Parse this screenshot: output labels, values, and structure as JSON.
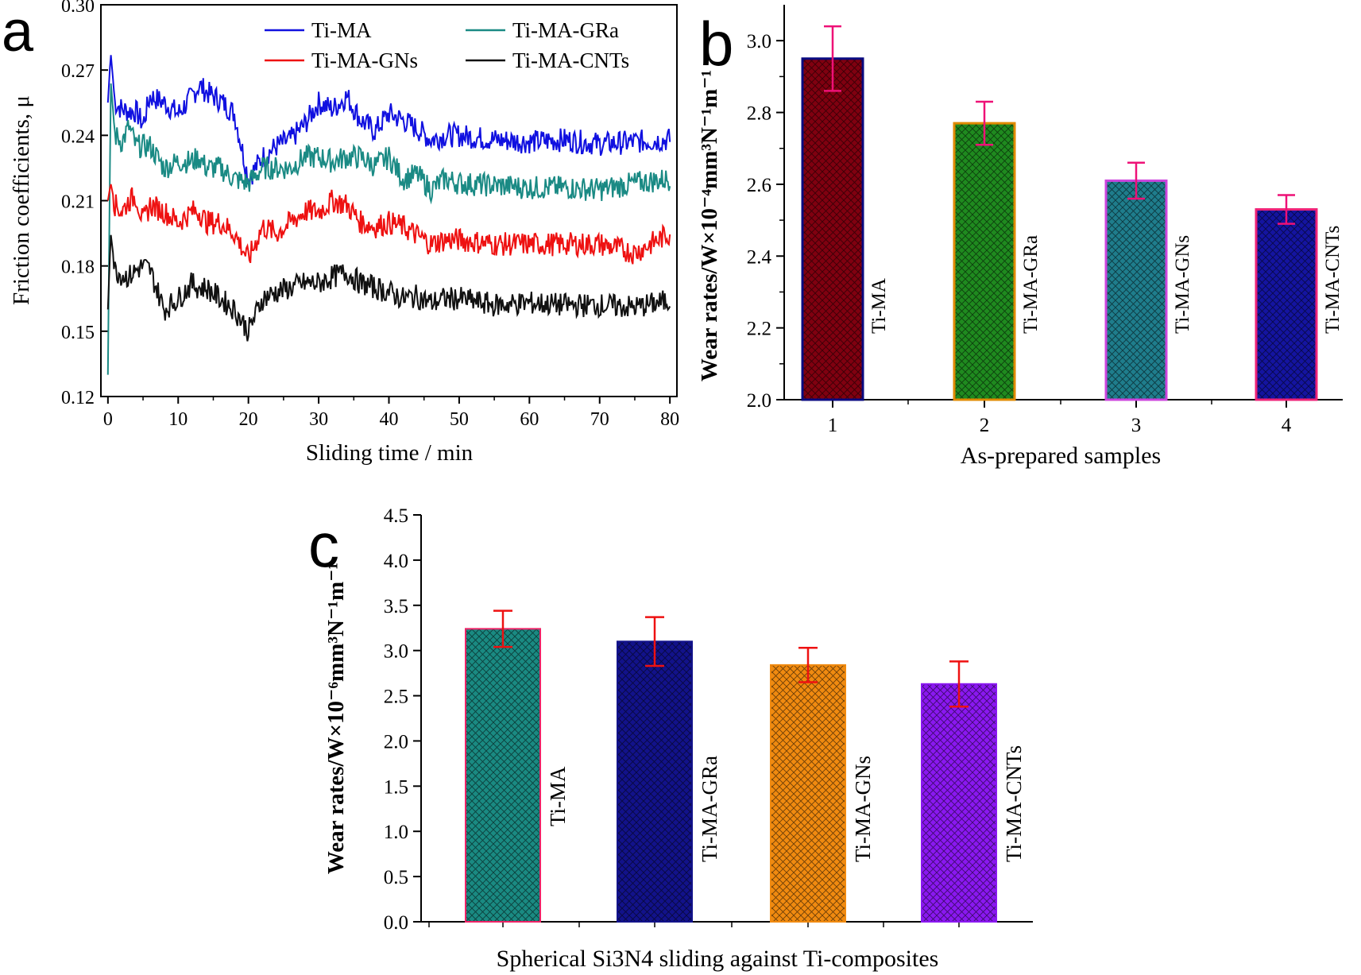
{
  "chart_data": [
    {
      "panel_label": "a",
      "type": "line",
      "xlabel": "Sliding time / min",
      "ylabel": "Friction coefficients, μ",
      "xlim": [
        -1,
        81
      ],
      "ylim": [
        0.12,
        0.3
      ],
      "xticks": [
        "0",
        "10",
        "20",
        "30",
        "40",
        "50",
        "60",
        "70",
        "80"
      ],
      "yticks": [
        "0.12",
        "0.15",
        "0.18",
        "0.21",
        "0.24",
        "0.27",
        "0.30"
      ],
      "legend": [
        "Ti-MA",
        "Ti-MA-GRa",
        "Ti-MA-GNs",
        "Ti-MA-CNTs"
      ],
      "legend_position": "top",
      "x": [
        0,
        0.4,
        1,
        2,
        3,
        4,
        5,
        6,
        8,
        10,
        12,
        13,
        14,
        16,
        18,
        20,
        22,
        24,
        26,
        28,
        30,
        32,
        34,
        36,
        38,
        40,
        42,
        44,
        46,
        48,
        50,
        55,
        60,
        65,
        70,
        75,
        80
      ],
      "series": [
        {
          "name": "Ti-MA",
          "color": "#1010e0",
          "values": [
            0.255,
            0.278,
            0.255,
            0.252,
            0.251,
            0.251,
            0.245,
            0.258,
            0.255,
            0.25,
            0.258,
            0.263,
            0.26,
            0.256,
            0.25,
            0.22,
            0.23,
            0.235,
            0.238,
            0.245,
            0.255,
            0.252,
            0.258,
            0.247,
            0.242,
            0.25,
            0.247,
            0.243,
            0.238,
            0.24,
            0.24,
            0.238,
            0.237,
            0.238,
            0.236,
            0.237,
            0.238
          ]
        },
        {
          "name": "Ti-MA-GRa",
          "color": "#1a8a84",
          "values": [
            0.13,
            0.265,
            0.24,
            0.237,
            0.244,
            0.235,
            0.235,
            0.235,
            0.225,
            0.228,
            0.228,
            0.23,
            0.225,
            0.225,
            0.22,
            0.218,
            0.225,
            0.225,
            0.225,
            0.23,
            0.23,
            0.228,
            0.23,
            0.23,
            0.226,
            0.23,
            0.22,
            0.222,
            0.215,
            0.22,
            0.218,
            0.217,
            0.216,
            0.216,
            0.215,
            0.218,
            0.22
          ]
        },
        {
          "name": "Ti-MA-GNs",
          "color": "#ee1111",
          "values": [
            0.21,
            0.218,
            0.208,
            0.205,
            0.21,
            0.212,
            0.2,
            0.208,
            0.205,
            0.2,
            0.205,
            0.205,
            0.2,
            0.2,
            0.195,
            0.183,
            0.198,
            0.195,
            0.2,
            0.205,
            0.205,
            0.21,
            0.208,
            0.2,
            0.198,
            0.2,
            0.198,
            0.194,
            0.19,
            0.192,
            0.192,
            0.19,
            0.19,
            0.19,
            0.19,
            0.186,
            0.195
          ]
        },
        {
          "name": "Ti-MA-CNTs",
          "color": "#111111",
          "values": [
            0.16,
            0.195,
            0.178,
            0.176,
            0.175,
            0.178,
            0.18,
            0.178,
            0.16,
            0.165,
            0.172,
            0.17,
            0.17,
            0.165,
            0.16,
            0.15,
            0.165,
            0.168,
            0.17,
            0.172,
            0.172,
            0.175,
            0.177,
            0.172,
            0.17,
            0.168,
            0.165,
            0.166,
            0.163,
            0.165,
            0.165,
            0.162,
            0.163,
            0.162,
            0.162,
            0.161,
            0.164
          ]
        }
      ]
    },
    {
      "panel_label": "b",
      "type": "bar",
      "xlabel": "As-prepared samples",
      "ylabel": "Wear rates/W×10⁻⁴mm³N⁻¹m⁻¹",
      "ylim": [
        2.0,
        3.1
      ],
      "yticks": [
        "2.0",
        "2.2",
        "2.4",
        "2.6",
        "2.8",
        "3.0"
      ],
      "categories": [
        "1",
        "2",
        "3",
        "4"
      ],
      "bar_labels": [
        "Ti-MA",
        "Ti-MA-GRa",
        "Ti-MA-GNs",
        "Ti-MA-CNTs"
      ],
      "values": [
        2.95,
        2.77,
        2.61,
        2.53
      ],
      "errors": [
        0.09,
        0.06,
        0.05,
        0.04
      ],
      "bar_colors": [
        "#800010",
        "#1f8a1f",
        "#1f7d8c",
        "#1414a0"
      ],
      "edge_colors": [
        "#0a0a80",
        "#e08a00",
        "#cc44dd",
        "#ee2277"
      ],
      "error_color": "#ee1177"
    },
    {
      "panel_label": "c",
      "type": "bar",
      "xlabel": "Spherical Si3N4 sliding against Ti-composites",
      "ylabel": "Wear rates/W×10⁻⁶mm³N⁻¹m⁻¹",
      "ylim": [
        0.0,
        4.5
      ],
      "yticks": [
        "0.0",
        "0.5",
        "1.0",
        "1.5",
        "2.0",
        "2.5",
        "3.0",
        "3.5",
        "4.0",
        "4.5"
      ],
      "categories": [
        "Ti-MA",
        "Ti-MA-GRa",
        "Ti-MA-GNs",
        "Ti-MA-CNTs"
      ],
      "values": [
        3.24,
        3.1,
        2.84,
        2.63
      ],
      "errors": [
        0.2,
        0.27,
        0.19,
        0.25
      ],
      "bar_colors": [
        "#1a8a82",
        "#12128a",
        "#f08a10",
        "#8a18f0"
      ],
      "edge_colors": [
        "#ee2266",
        "#12128a",
        "#f08a10",
        "#8a18f0"
      ],
      "error_color": "#ee1111"
    }
  ]
}
